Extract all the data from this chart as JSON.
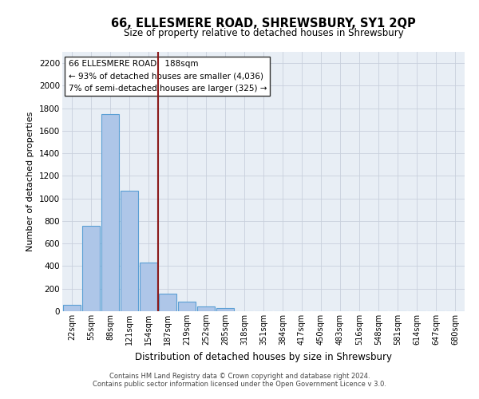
{
  "title": "66, ELLESMERE ROAD, SHREWSBURY, SY1 2QP",
  "subtitle": "Size of property relative to detached houses in Shrewsbury",
  "xlabel": "Distribution of detached houses by size in Shrewsbury",
  "ylabel": "Number of detached properties",
  "bar_labels": [
    "22sqm",
    "55sqm",
    "88sqm",
    "121sqm",
    "154sqm",
    "187sqm",
    "219sqm",
    "252sqm",
    "285sqm",
    "318sqm",
    "351sqm",
    "384sqm",
    "417sqm",
    "450sqm",
    "483sqm",
    "516sqm",
    "548sqm",
    "581sqm",
    "614sqm",
    "647sqm",
    "680sqm"
  ],
  "bar_values": [
    60,
    760,
    1750,
    1070,
    430,
    155,
    85,
    40,
    25,
    0,
    0,
    0,
    0,
    0,
    0,
    0,
    0,
    0,
    0,
    0,
    0
  ],
  "bar_color": "#aec6e8",
  "bar_edge_color": "#5a9fd4",
  "annotation_line0": "66 ELLESMERE ROAD:  188sqm",
  "annotation_line1": "← 93% of detached houses are smaller (4,036)",
  "annotation_line2": "7% of semi-detached houses are larger (325) →",
  "vline_color": "#8b1a1a",
  "vline_position": 5,
  "ylim": [
    0,
    2300
  ],
  "yticks": [
    0,
    200,
    400,
    600,
    800,
    1000,
    1200,
    1400,
    1600,
    1800,
    2000,
    2200
  ],
  "grid_color": "#c8d0dc",
  "background_color": "#e8eef5",
  "footer_line1": "Contains HM Land Registry data © Crown copyright and database right 2024.",
  "footer_line2": "Contains public sector information licensed under the Open Government Licence v 3.0."
}
